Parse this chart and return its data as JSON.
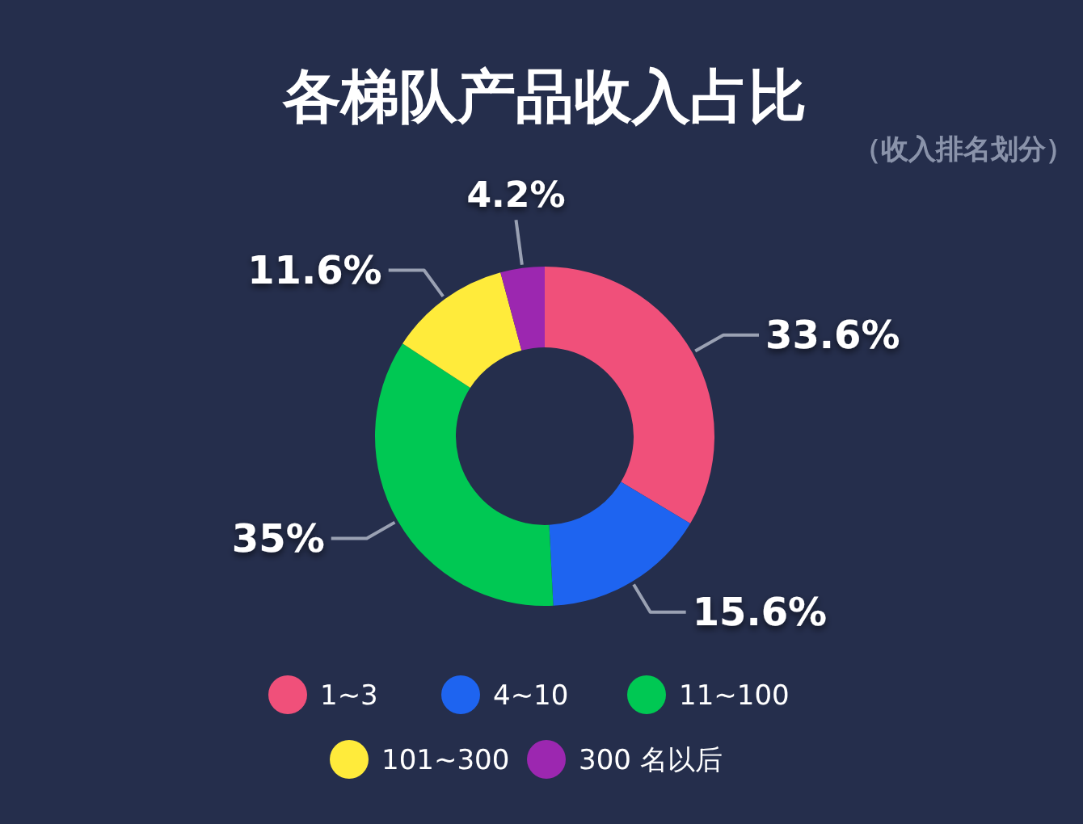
{
  "chart_data": {
    "type": "donut",
    "title": "各梯队产品收入占比",
    "subtitle": "（收入排名划分）",
    "categories": [
      "1~3",
      "4~10",
      "11~100",
      "101~300",
      "300 名以后"
    ],
    "values": [
      33.6,
      15.6,
      35,
      11.6,
      4.2
    ],
    "colors": [
      "#f0507a",
      "#1e64f0",
      "#00c853",
      "#ffeb3b",
      "#9c27b0"
    ],
    "value_labels": [
      "33.6%",
      "15.6%",
      "35%",
      "11.6%",
      "4.2%"
    ],
    "legend": "bottom"
  }
}
